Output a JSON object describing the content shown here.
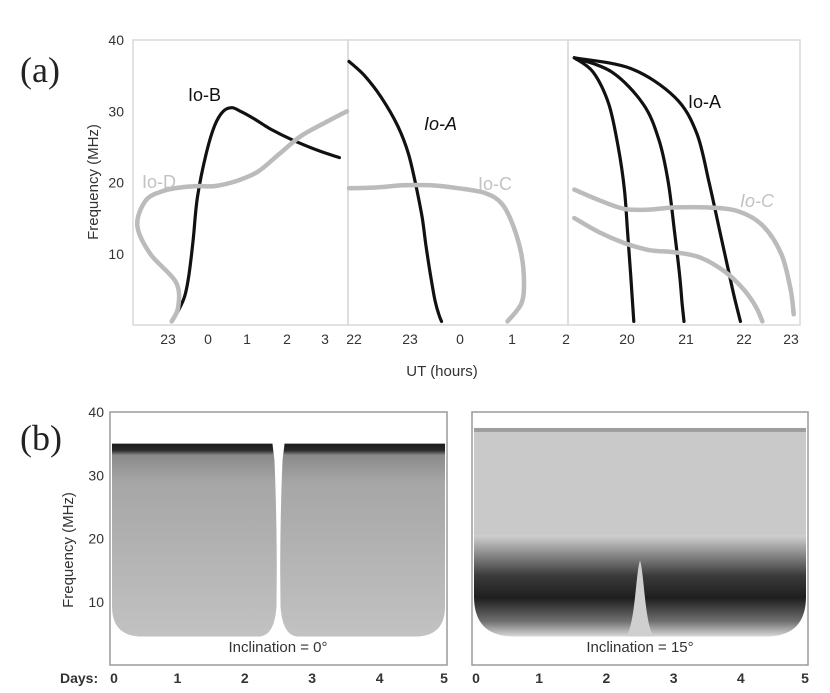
{
  "panel_a": {
    "label": "(a)",
    "ylabel": "Frequency (MHz)",
    "xlabel": "UT (hours)",
    "y_ticks": [
      "40",
      "30",
      "20",
      "10"
    ]
  },
  "panel_b": {
    "label": "(b)",
    "ylabel": "Frequency (MHz)",
    "days_label": "Days:",
    "y_ticks": [
      "40",
      "30",
      "20",
      "10"
    ]
  },
  "chart_data": [
    {
      "type": "line",
      "panel": "a1",
      "ylim": [
        0,
        40
      ],
      "x_ticks": [
        "23",
        "0",
        "1",
        "2",
        "3"
      ],
      "xlim_hours": [
        -1.5,
        3.5
      ],
      "series": [
        {
          "name": "Io-B",
          "color": "#111111",
          "x": [
            -0.6,
            -0.45,
            -0.3,
            -0.2,
            -0.1,
            0.0,
            0.2,
            0.4,
            0.6,
            0.8,
            1.0,
            1.3,
            1.7,
            2.2,
            2.8,
            3.3
          ],
          "y": [
            0.5,
            2,
            4,
            7,
            12,
            18,
            24,
            28,
            30,
            30.5,
            30,
            29,
            27.5,
            26,
            24.5,
            23.5
          ]
        },
        {
          "name": "Io-D",
          "color": "#bbbbbb",
          "x": [
            -0.6,
            -0.45,
            -0.5,
            -1.1,
            -1.4,
            -1.2,
            -0.8,
            -0.4,
            0.0,
            0.4,
            0.9,
            1.4,
            1.9,
            2.4,
            3.0,
            3.5
          ],
          "y": [
            0.5,
            2.5,
            6,
            10,
            14,
            17.5,
            18.8,
            19.3,
            19.5,
            19.5,
            20.2,
            21.5,
            24,
            26.5,
            28.5,
            30
          ]
        }
      ]
    },
    {
      "type": "line",
      "panel": "a2",
      "ylim": [
        0,
        40
      ],
      "x_ticks": [
        "22",
        "23",
        "0",
        "1",
        "2"
      ],
      "xlim_hours": [
        -2.0,
        2.0
      ],
      "series": [
        {
          "name": "Io-A",
          "color": "#111111",
          "x": [
            -2.0,
            -1.7,
            -1.4,
            -1.1,
            -0.9,
            -0.75,
            -0.65,
            -0.58,
            -0.5,
            -0.42,
            -0.35,
            -0.3
          ],
          "y": [
            37,
            35,
            32,
            28,
            24,
            19,
            15,
            11,
            7,
            3.5,
            1.5,
            0.5
          ]
        },
        {
          "name": "Io-C",
          "color": "#bbbbbb",
          "x": [
            -2.0,
            -1.5,
            -1.0,
            -0.5,
            0.0,
            0.5,
            0.8,
            1.0,
            1.15,
            1.2,
            1.15,
            0.9
          ],
          "y": [
            19.2,
            19.3,
            19.6,
            19.6,
            19.2,
            18.5,
            17,
            14,
            10,
            6,
            3,
            0.5
          ]
        }
      ]
    },
    {
      "type": "line",
      "panel": "a3",
      "ylim": [
        0,
        40
      ],
      "x_ticks": [
        "20",
        "21",
        "22",
        "23"
      ],
      "xlim_hours": [
        19.3,
        23.0
      ],
      "series": [
        {
          "name": "Io-A",
          "color": "#111111",
          "x": [
            19.4,
            19.7,
            19.95,
            20.1,
            20.2,
            20.25,
            20.3,
            20.33,
            20.35
          ],
          "y": [
            37.5,
            35.5,
            31,
            25,
            19,
            13,
            7,
            3,
            0.5
          ]
        },
        {
          "name": "",
          "color": "#111111",
          "x": [
            19.4,
            20.0,
            20.5,
            20.75,
            20.9,
            21.0,
            21.08,
            21.12,
            21.15
          ],
          "y": [
            37.5,
            35.5,
            31,
            26,
            20,
            13,
            7,
            3,
            0.5
          ]
        },
        {
          "name": "",
          "color": "#111111",
          "x": [
            19.4,
            20.3,
            21.0,
            21.35,
            21.55,
            21.7,
            21.85,
            21.95,
            22.05
          ],
          "y": [
            37.5,
            36,
            32,
            27,
            20,
            14,
            8,
            4,
            0.5
          ]
        },
        {
          "name": "Io-C",
          "color": "#bbbbbb",
          "x": [
            19.4,
            19.8,
            20.2,
            20.6,
            21.0,
            21.5,
            22.0,
            22.4,
            22.7,
            22.85,
            22.9
          ],
          "y": [
            19,
            17.5,
            16.3,
            16.2,
            16.5,
            16.5,
            16,
            14,
            10,
            5,
            1.5
          ]
        },
        {
          "name": "",
          "color": "#bbbbbb",
          "x": [
            19.4,
            19.8,
            20.2,
            20.6,
            21.0,
            21.4,
            21.8,
            22.1,
            22.3,
            22.4
          ],
          "y": [
            15,
            13,
            11.5,
            10.5,
            10.2,
            9.5,
            7.5,
            5,
            2.5,
            0.5
          ]
        }
      ]
    },
    {
      "type": "area",
      "panel": "b1",
      "annotation": "Inclination = 0°",
      "x_ticks": [
        "0",
        "1",
        "2",
        "3",
        "4",
        "5"
      ],
      "xlim": [
        0,
        5
      ],
      "ylim": [
        0,
        40
      ],
      "emission_top_mhz": 35,
      "emission_bottom_mhz": 4.5,
      "notch_day": 2.5
    },
    {
      "type": "area",
      "panel": "b2",
      "annotation": "Inclination = 15°",
      "x_ticks": [
        "0",
        "1",
        "2",
        "3",
        "4",
        "5"
      ],
      "xlim": [
        0,
        5
      ],
      "ylim": [
        0,
        40
      ],
      "emission_top_mhz": 37,
      "dark_band_top_mhz": 20.5,
      "emission_bottom_mhz": 4.5,
      "notch_day": 2.5,
      "notch_top_mhz": 16.5
    }
  ]
}
